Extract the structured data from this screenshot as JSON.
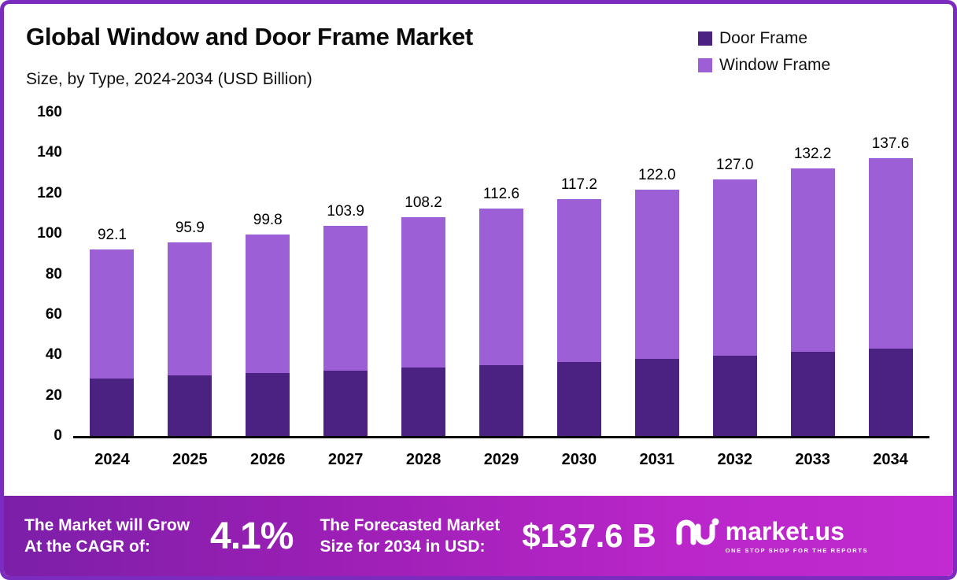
{
  "header": {
    "title": "Global Window and Door Frame Market",
    "subtitle": "Size, by Type, 2024-2034 (USD Billion)"
  },
  "legend": [
    {
      "label": "Door Frame",
      "color": "#4b2182"
    },
    {
      "label": "Window Frame",
      "color": "#9c5fd6"
    }
  ],
  "chart_data": {
    "type": "bar",
    "stacked": true,
    "title": "Global Window and Door Frame Market Size, by Type, 2024-2034 (USD Billion)",
    "categories": [
      "2024",
      "2025",
      "2026",
      "2027",
      "2028",
      "2029",
      "2030",
      "2031",
      "2032",
      "2033",
      "2034"
    ],
    "series": [
      {
        "name": "Door Frame",
        "color": "#4b2182",
        "values": [
          28.5,
          29.8,
          31.1,
          32.4,
          33.8,
          35.2,
          36.7,
          38.2,
          39.8,
          41.5,
          43.2
        ]
      },
      {
        "name": "Window Frame",
        "color": "#9c5fd6",
        "values": [
          63.6,
          66.1,
          68.7,
          71.5,
          74.4,
          77.4,
          80.5,
          83.8,
          87.2,
          90.7,
          94.4
        ]
      }
    ],
    "totals": [
      92.1,
      95.9,
      99.8,
      103.9,
      108.2,
      112.6,
      117.2,
      122.0,
      127.0,
      132.2,
      137.6
    ],
    "total_labels": [
      "92.1",
      "95.9",
      "99.8",
      "103.9",
      "108.2",
      "112.6",
      "117.2",
      "122.0",
      "127.0",
      "132.2",
      "137.6"
    ],
    "ylim": [
      0,
      160
    ],
    "yticks": [
      0,
      20,
      40,
      60,
      80,
      100,
      120,
      140,
      160
    ],
    "xlabel": "",
    "ylabel": "",
    "grid": false,
    "legend_position": "top-right"
  },
  "banner": {
    "left_line1": "The Market will Grow",
    "left_line2": "At the CAGR of:",
    "cagr": "4.1%",
    "mid_line1": "The Forecasted Market",
    "mid_line2": "Size for 2034 in USD:",
    "value": "$137.6 B",
    "brand": "market.us",
    "tagline": "ONE STOP SHOP FOR THE REPORTS"
  }
}
